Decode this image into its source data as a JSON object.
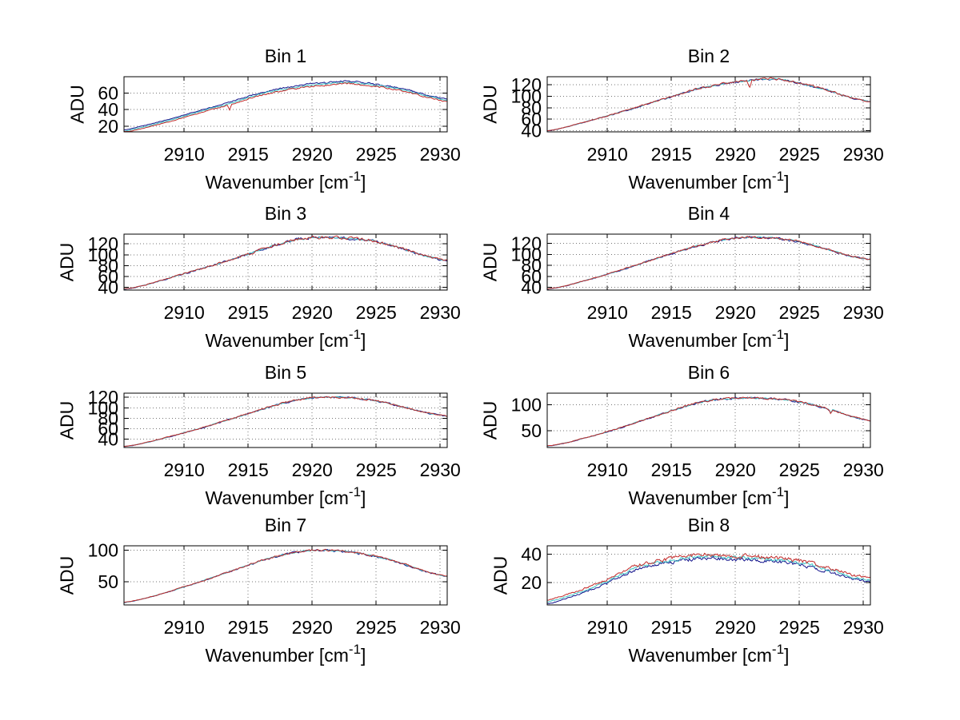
{
  "figure": {
    "background": "#ffffff",
    "ylabel": "ADU",
    "xlabel": {
      "pre": "Wavenumber [cm",
      "sup": "-1",
      "post": "]"
    },
    "xlim": [
      2905.3,
      2930.55
    ],
    "xticks": [
      2910,
      2915,
      2920,
      2925,
      2930
    ],
    "grid": "dotted",
    "grid_color": "#777777",
    "axis_color": "#000000",
    "legend": "none"
  },
  "series_colors": {
    "blue": "#14148C",
    "cyan": "#3FC6C6",
    "red": "#C22A2A"
  },
  "chart_data": [
    {
      "type": "line",
      "title": "Bin 1",
      "ylim": [
        13,
        80
      ],
      "yticks": [
        20,
        40,
        60
      ],
      "base_points": [
        [
          2905.4,
          15.5
        ],
        [
          2906,
          17.5
        ],
        [
          2907,
          21
        ],
        [
          2908,
          25
        ],
        [
          2909,
          29
        ],
        [
          2910,
          33.5
        ],
        [
          2911,
          38
        ],
        [
          2912,
          42.5
        ],
        [
          2913,
          46.5
        ],
        [
          2914,
          51
        ],
        [
          2915,
          56
        ],
        [
          2916,
          60.5
        ],
        [
          2917,
          64
        ],
        [
          2918,
          67
        ],
        [
          2919,
          69.5
        ],
        [
          2920,
          71.5
        ],
        [
          2921,
          72.5
        ],
        [
          2922,
          74
        ],
        [
          2922.8,
          74.8
        ],
        [
          2923.6,
          73.5
        ],
        [
          2924.5,
          72
        ],
        [
          2925.5,
          70
        ],
        [
          2926.5,
          67.5
        ],
        [
          2927.5,
          64
        ],
        [
          2928.5,
          60
        ],
        [
          2929.2,
          57
        ],
        [
          2930.6,
          52.5
        ]
      ],
      "series": [
        {
          "name": "blue",
          "color_key": "blue",
          "dy": 0,
          "noise": 0.55,
          "dips": []
        },
        {
          "name": "cyan",
          "color_key": "cyan",
          "dy": -1.5,
          "noise": 0.5,
          "dips": []
        },
        {
          "name": "red",
          "color_key": "red",
          "dy": -3,
          "noise": 0.55,
          "dips": [
            {
              "x": 2913.55,
              "depth": 6.5,
              "width": 0.18
            }
          ]
        }
      ]
    },
    {
      "type": "line",
      "title": "Bin 2",
      "ylim": [
        38,
        134
      ],
      "yticks": [
        40,
        60,
        80,
        100,
        120
      ],
      "base_points": [
        [
          2905.4,
          40
        ],
        [
          2906,
          42
        ],
        [
          2907,
          47.5
        ],
        [
          2908,
          53.5
        ],
        [
          2909,
          59.5
        ],
        [
          2910,
          65.5
        ],
        [
          2911,
          72
        ],
        [
          2912,
          78.5
        ],
        [
          2913,
          85.5
        ],
        [
          2914,
          92.5
        ],
        [
          2915,
          99
        ],
        [
          2916,
          106
        ],
        [
          2917,
          112.5
        ],
        [
          2918,
          117.5
        ],
        [
          2919,
          121.5
        ],
        [
          2920,
          124.5
        ],
        [
          2921,
          127
        ],
        [
          2922,
          129.5
        ],
        [
          2923,
          130
        ],
        [
          2924,
          127.5
        ],
        [
          2925,
          123
        ],
        [
          2926,
          117.5
        ],
        [
          2927,
          111.5
        ],
        [
          2928,
          104.5
        ],
        [
          2929,
          97.5
        ],
        [
          2930.6,
          90
        ]
      ],
      "series": [
        {
          "name": "blue",
          "color_key": "blue",
          "dy": 0,
          "noise": 1.0,
          "dips": []
        },
        {
          "name": "cyan",
          "color_key": "cyan",
          "dy": 0.2,
          "noise": 0.7,
          "dips": []
        },
        {
          "name": "red",
          "color_key": "red",
          "dy": 0.3,
          "noise": 1.0,
          "dips": [
            {
              "x": 2921.1,
              "depth": 14,
              "width": 0.2
            }
          ]
        }
      ]
    },
    {
      "type": "line",
      "title": "Bin 3",
      "ylim": [
        35,
        138
      ],
      "yticks": [
        40,
        60,
        80,
        100,
        120
      ],
      "base_points": [
        [
          2905.4,
          37
        ],
        [
          2906,
          39
        ],
        [
          2907,
          44.5
        ],
        [
          2908,
          51
        ],
        [
          2909,
          58
        ],
        [
          2910,
          65
        ],
        [
          2911,
          72
        ],
        [
          2912,
          79
        ],
        [
          2913,
          86
        ],
        [
          2914,
          93.5
        ],
        [
          2915,
          101
        ],
        [
          2916,
          109
        ],
        [
          2917,
          117
        ],
        [
          2918,
          124
        ],
        [
          2919,
          129
        ],
        [
          2920,
          131
        ],
        [
          2921,
          132
        ],
        [
          2922,
          131
        ],
        [
          2923,
          130
        ],
        [
          2924,
          128
        ],
        [
          2925,
          124
        ],
        [
          2926,
          118
        ],
        [
          2927,
          111.5
        ],
        [
          2928,
          104
        ],
        [
          2929,
          96.5
        ],
        [
          2930.6,
          88.5
        ]
      ],
      "series": [
        {
          "name": "blue",
          "color_key": "blue",
          "dy": 0,
          "noise": 1.5,
          "dips": []
        },
        {
          "name": "cyan",
          "color_key": "cyan",
          "dy": 0.2,
          "noise": 1.0,
          "dips": []
        },
        {
          "name": "red",
          "color_key": "red",
          "dy": 0.3,
          "noise": 1.5,
          "dips": []
        }
      ]
    },
    {
      "type": "line",
      "title": "Bin 4",
      "ylim": [
        35,
        137
      ],
      "yticks": [
        40,
        60,
        80,
        100,
        120
      ],
      "base_points": [
        [
          2905.4,
          37
        ],
        [
          2906,
          39
        ],
        [
          2907,
          44
        ],
        [
          2908,
          50.5
        ],
        [
          2909,
          57
        ],
        [
          2910,
          64
        ],
        [
          2911,
          71
        ],
        [
          2912,
          78.5
        ],
        [
          2913,
          86
        ],
        [
          2914,
          94
        ],
        [
          2915,
          101.5
        ],
        [
          2916,
          108.5
        ],
        [
          2917,
          115
        ],
        [
          2918,
          121
        ],
        [
          2919,
          126
        ],
        [
          2920,
          129.5
        ],
        [
          2921,
          131
        ],
        [
          2922,
          130.5
        ],
        [
          2923,
          129.5
        ],
        [
          2924,
          127
        ],
        [
          2925,
          123
        ],
        [
          2926,
          117
        ],
        [
          2927,
          110.5
        ],
        [
          2928,
          103.5
        ],
        [
          2929,
          96.5
        ],
        [
          2930.6,
          90
        ]
      ],
      "series": [
        {
          "name": "blue",
          "color_key": "blue",
          "dy": 0,
          "noise": 1.1,
          "dips": []
        },
        {
          "name": "cyan",
          "color_key": "cyan",
          "dy": 0.2,
          "noise": 0.8,
          "dips": []
        },
        {
          "name": "red",
          "color_key": "red",
          "dy": 0.3,
          "noise": 1.1,
          "dips": []
        }
      ]
    },
    {
      "type": "line",
      "title": "Bin 5",
      "ylim": [
        24,
        128
      ],
      "yticks": [
        40,
        60,
        80,
        100,
        120
      ],
      "base_points": [
        [
          2905.4,
          26
        ],
        [
          2906,
          28
        ],
        [
          2907,
          33
        ],
        [
          2908,
          39
        ],
        [
          2909,
          45.5
        ],
        [
          2910,
          52
        ],
        [
          2911,
          59
        ],
        [
          2912,
          66
        ],
        [
          2913,
          73.5
        ],
        [
          2914,
          81
        ],
        [
          2915,
          88.5
        ],
        [
          2916,
          96.5
        ],
        [
          2917,
          104
        ],
        [
          2918,
          110.5
        ],
        [
          2919,
          115.5
        ],
        [
          2920,
          118.5
        ],
        [
          2921,
          120
        ],
        [
          2922,
          120
        ],
        [
          2923,
          119
        ],
        [
          2924,
          116.5
        ],
        [
          2925,
          113
        ],
        [
          2926,
          108
        ],
        [
          2927,
          102
        ],
        [
          2928,
          96
        ],
        [
          2929,
          90
        ],
        [
          2930.6,
          83.5
        ]
      ],
      "series": [
        {
          "name": "blue",
          "color_key": "blue",
          "dy": 0,
          "noise": 1.0,
          "dips": []
        },
        {
          "name": "cyan",
          "color_key": "cyan",
          "dy": 0.2,
          "noise": 0.7,
          "dips": []
        },
        {
          "name": "red",
          "color_key": "red",
          "dy": 0.3,
          "noise": 1.0,
          "dips": []
        }
      ]
    },
    {
      "type": "line",
      "title": "Bin 6",
      "ylim": [
        18,
        122
      ],
      "yticks": [
        50,
        100
      ],
      "base_points": [
        [
          2905.4,
          21
        ],
        [
          2906,
          23
        ],
        [
          2907,
          28
        ],
        [
          2908,
          34.5
        ],
        [
          2909,
          41
        ],
        [
          2910,
          48
        ],
        [
          2911,
          55.5
        ],
        [
          2912,
          63.5
        ],
        [
          2913,
          72
        ],
        [
          2914,
          80
        ],
        [
          2915,
          88
        ],
        [
          2916,
          96
        ],
        [
          2917,
          103
        ],
        [
          2918,
          108
        ],
        [
          2919,
          111
        ],
        [
          2920,
          112.5
        ],
        [
          2921,
          113
        ],
        [
          2922,
          112.5
        ],
        [
          2923,
          111
        ],
        [
          2924,
          109
        ],
        [
          2925,
          105
        ],
        [
          2926,
          100
        ],
        [
          2927,
          94
        ],
        [
          2927.3,
          90
        ],
        [
          2927.45,
          82.5
        ],
        [
          2927.6,
          89
        ],
        [
          2928,
          86
        ],
        [
          2929,
          77.5
        ],
        [
          2930.6,
          68.5
        ]
      ],
      "series": [
        {
          "name": "blue",
          "color_key": "blue",
          "dy": 0,
          "noise": 1.1,
          "dips": []
        },
        {
          "name": "cyan",
          "color_key": "cyan",
          "dy": 0.2,
          "noise": 0.8,
          "dips": []
        },
        {
          "name": "red",
          "color_key": "red",
          "dy": 0.3,
          "noise": 1.1,
          "dips": []
        }
      ]
    },
    {
      "type": "line",
      "title": "Bin 7",
      "ylim": [
        13,
        107
      ],
      "yticks": [
        50,
        100
      ],
      "base_points": [
        [
          2905.4,
          17
        ],
        [
          2906,
          19
        ],
        [
          2907,
          23.5
        ],
        [
          2908,
          29
        ],
        [
          2909,
          35
        ],
        [
          2910,
          41.5
        ],
        [
          2911,
          48
        ],
        [
          2912,
          55
        ],
        [
          2913,
          62
        ],
        [
          2914,
          69
        ],
        [
          2915,
          76
        ],
        [
          2916,
          83
        ],
        [
          2917,
          89
        ],
        [
          2918,
          94
        ],
        [
          2919,
          97.5
        ],
        [
          2920,
          99.5
        ],
        [
          2921,
          100
        ],
        [
          2922,
          99
        ],
        [
          2923,
          97
        ],
        [
          2924,
          94
        ],
        [
          2925,
          90
        ],
        [
          2926,
          85
        ],
        [
          2927,
          79
        ],
        [
          2928,
          72
        ],
        [
          2929,
          65
        ],
        [
          2930.6,
          57.5
        ]
      ],
      "series": [
        {
          "name": "blue",
          "color_key": "blue",
          "dy": 0,
          "noise": 0.9,
          "dips": []
        },
        {
          "name": "cyan",
          "color_key": "cyan",
          "dy": 0.2,
          "noise": 0.6,
          "dips": []
        },
        {
          "name": "red",
          "color_key": "red",
          "dy": 0.3,
          "noise": 0.9,
          "dips": []
        }
      ]
    },
    {
      "type": "line",
      "title": "Bin 8",
      "ylim": [
        4,
        46
      ],
      "yticks": [
        20,
        40
      ],
      "base_points": [
        [
          2905.4,
          7.5
        ],
        [
          2906,
          9
        ],
        [
          2907,
          12
        ],
        [
          2908,
          15
        ],
        [
          2909,
          18.5
        ],
        [
          2910,
          22
        ],
        [
          2911,
          26.5
        ],
        [
          2912,
          31
        ],
        [
          2913,
          33.5
        ],
        [
          2914,
          35.5
        ],
        [
          2915,
          37
        ],
        [
          2916,
          38.5
        ],
        [
          2917,
          39.5
        ],
        [
          2918,
          40
        ],
        [
          2919,
          39.5
        ],
        [
          2920,
          39
        ],
        [
          2921,
          39
        ],
        [
          2922,
          38
        ],
        [
          2923,
          37.5
        ],
        [
          2924,
          37
        ],
        [
          2925,
          35.5
        ],
        [
          2926,
          33.5
        ],
        [
          2927,
          31
        ],
        [
          2928,
          28.5
        ],
        [
          2929,
          25.5
        ],
        [
          2930.6,
          23
        ]
      ],
      "series": [
        {
          "name": "blue",
          "color_key": "blue",
          "dy": -2.7,
          "noise": 0.8,
          "dips": []
        },
        {
          "name": "cyan",
          "color_key": "cyan",
          "dy": -1.4,
          "noise": 0.7,
          "dips": []
        },
        {
          "name": "red",
          "color_key": "red",
          "dy": 0,
          "noise": 0.85,
          "dips": []
        }
      ]
    }
  ]
}
